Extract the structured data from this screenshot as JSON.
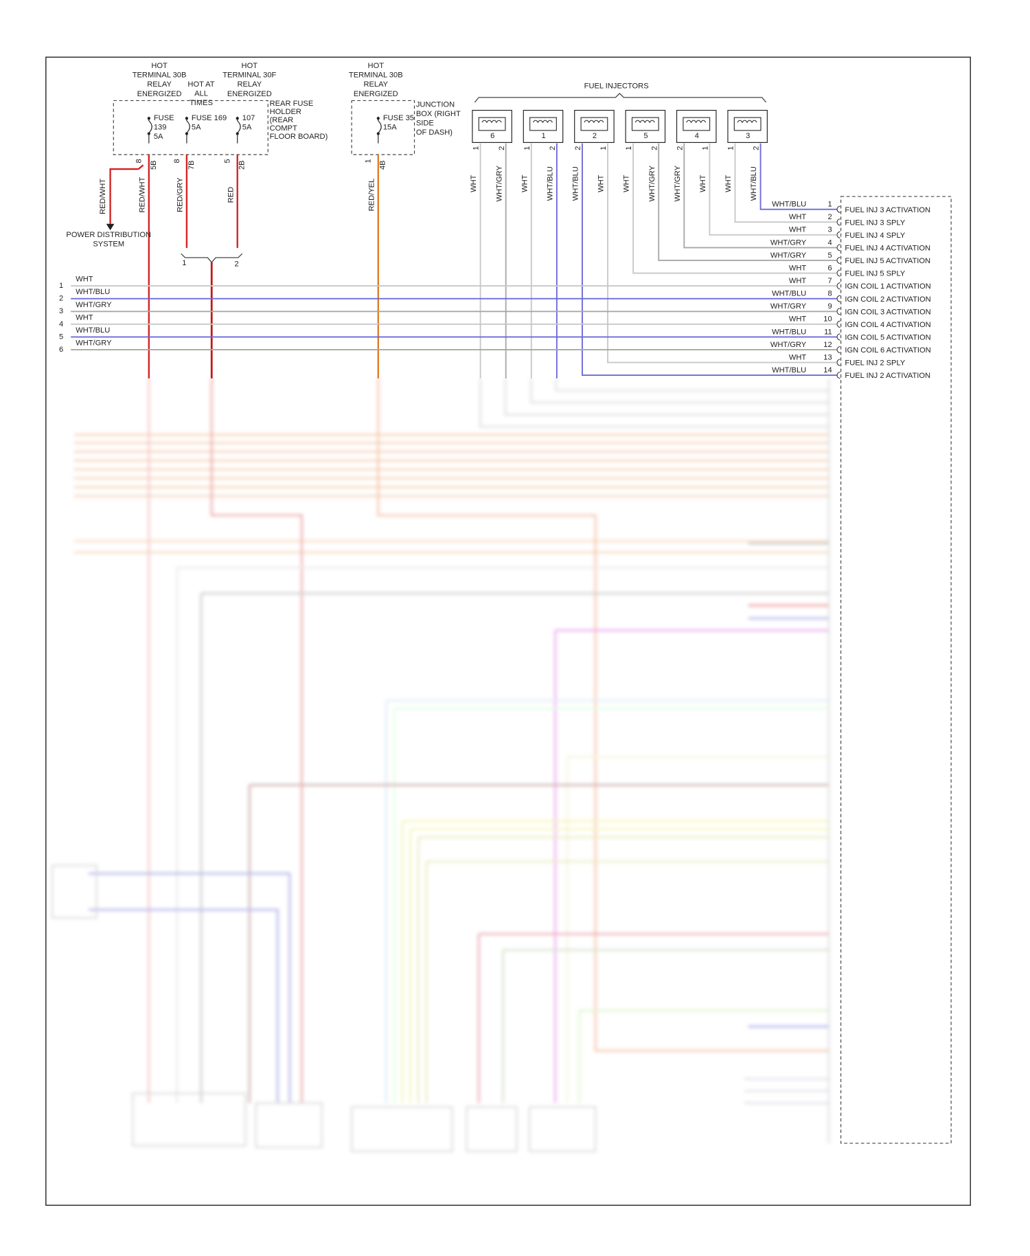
{
  "sources": [
    {
      "lines": [
        "HOT",
        "TERMINAL 30B",
        "RELAY",
        "ENERGIZED"
      ]
    },
    {
      "lines": [
        "HOT AT",
        "ALL",
        "TIMES"
      ]
    },
    {
      "lines": [
        "HOT",
        "TERMINAL 30F",
        "RELAY",
        "ENERGIZED"
      ]
    },
    {
      "lines": [
        "HOT",
        "TERMINAL 30B",
        "RELAY",
        "ENERGIZED"
      ]
    }
  ],
  "fuse_holder": {
    "lines": [
      "REAR FUSE",
      "HOLDER",
      "(REAR",
      "COMPT",
      "FLOOR BOARD)"
    ]
  },
  "junction_box": {
    "lines": [
      "JUNCTION",
      "BOX (RIGHT",
      "SIDE",
      "OF DASH)"
    ]
  },
  "fuses": [
    {
      "lines": [
        "FUSE",
        "139",
        "5A"
      ],
      "pins": [
        "8",
        "5B"
      ],
      "wire": "RED/WHT"
    },
    {
      "lines": [
        "FUSE 169",
        "5A"
      ],
      "pins": [
        "8",
        "7B"
      ],
      "wire": "RED/GRY"
    },
    {
      "lines": [
        "107",
        "5A"
      ],
      "pins": [
        "5",
        "2B"
      ],
      "wire": "RED"
    },
    {
      "lines": [
        "FUSE 35",
        "15A"
      ],
      "pins": [
        "1",
        "4B"
      ],
      "wire": "RED/YEL"
    }
  ],
  "power_wire": "RED/WHT",
  "power_distribution": [
    "POWER DISTRIBUTION",
    "SYSTEM"
  ],
  "splice": [
    "1",
    "2"
  ],
  "injectors_title": "FUEL INJECTORS",
  "injectors": [
    {
      "number": "6",
      "pins": [
        "1",
        "2"
      ],
      "wires": [
        "WHT",
        "WHT/GRY"
      ]
    },
    {
      "number": "1",
      "pins": [
        "1",
        "2"
      ],
      "wires": [
        "WHT",
        "WHT/BLU"
      ]
    },
    {
      "number": "2",
      "pins": [
        "2",
        "1"
      ],
      "wires": [
        "WHT/BLU",
        "WHT"
      ]
    },
    {
      "number": "5",
      "pins": [
        "1",
        "2"
      ],
      "wires": [
        "WHT",
        "WHT/GRY"
      ]
    },
    {
      "number": "4",
      "pins": [
        "2",
        "1"
      ],
      "wires": [
        "WHT/GRY",
        "WHT"
      ]
    },
    {
      "number": "3",
      "pins": [
        "1",
        "2"
      ],
      "wires": [
        "WHT",
        "WHT/BLU"
      ]
    }
  ],
  "coil_lines": [
    {
      "number": "1",
      "wire": "WHT"
    },
    {
      "number": "2",
      "wire": "WHT/BLU"
    },
    {
      "number": "3",
      "wire": "WHT/GRY"
    },
    {
      "number": "4",
      "wire": "WHT"
    },
    {
      "number": "5",
      "wire": "WHT/BLU"
    },
    {
      "number": "6",
      "wire": "WHT/GRY"
    }
  ],
  "connector": [
    {
      "pin": "1",
      "wire": "WHT/BLU",
      "function": "FUEL INJ 3 ACTIVATION"
    },
    {
      "pin": "2",
      "wire": "WHT",
      "function": "FUEL INJ 3 SPLY"
    },
    {
      "pin": "3",
      "wire": "WHT",
      "function": "FUEL INJ 4 SPLY"
    },
    {
      "pin": "4",
      "wire": "WHT/GRY",
      "function": "FUEL INJ 4 ACTIVATION"
    },
    {
      "pin": "5",
      "wire": "WHT/GRY",
      "function": "FUEL INJ 5 ACTIVATION"
    },
    {
      "pin": "6",
      "wire": "WHT",
      "function": "FUEL INJ 5 SPLY"
    },
    {
      "pin": "7",
      "wire": "WHT",
      "function": "IGN COIL 1 ACTIVATION"
    },
    {
      "pin": "8",
      "wire": "WHT/BLU",
      "function": "IGN COIL 2 ACTIVATION"
    },
    {
      "pin": "9",
      "wire": "WHT/GRY",
      "function": "IGN COIL 3 ACTIVATION"
    },
    {
      "pin": "10",
      "wire": "WHT",
      "function": "IGN COIL 4 ACTIVATION"
    },
    {
      "pin": "11",
      "wire": "WHT/BLU",
      "function": "IGN COIL 5 ACTIVATION"
    },
    {
      "pin": "12",
      "wire": "WHT/GRY",
      "function": "IGN COIL 6 ACTIVATION"
    },
    {
      "pin": "13",
      "wire": "WHT",
      "function": "FUEL INJ 2 SPLY"
    },
    {
      "pin": "14",
      "wire": "WHT/BLU",
      "function": "FUEL INJ 2 ACTIVATION"
    }
  ]
}
